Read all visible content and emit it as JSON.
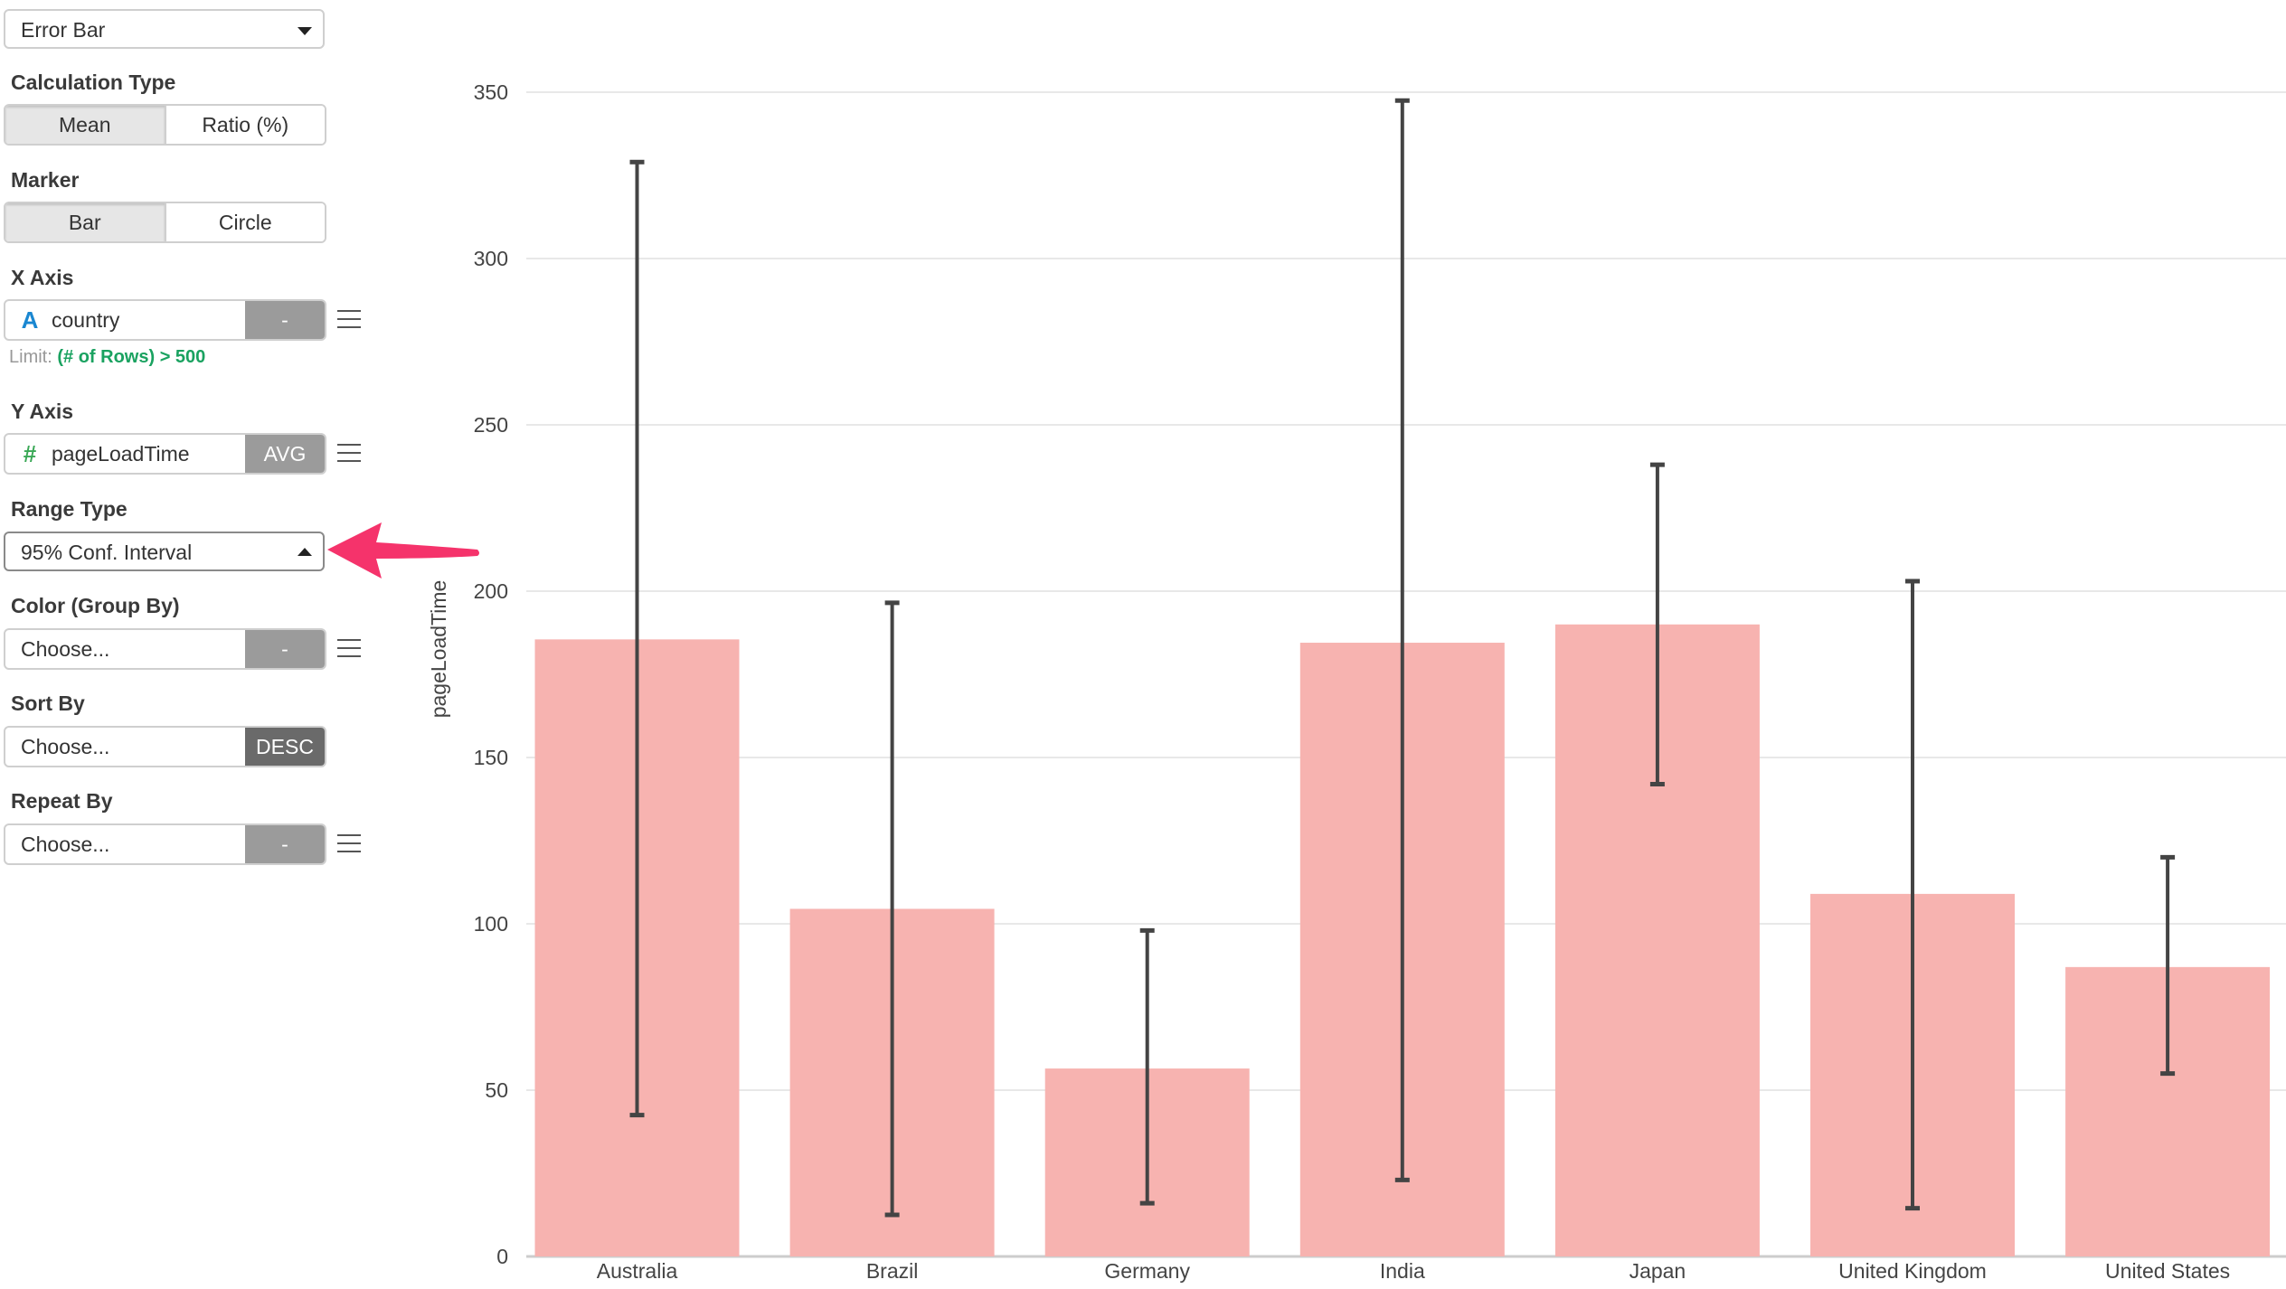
{
  "sidebar": {
    "chart_type": "Error Bar",
    "calculation_type": {
      "label": "Calculation Type",
      "options": [
        "Mean",
        "Ratio (%)"
      ],
      "selected": "Mean"
    },
    "marker": {
      "label": "Marker",
      "options": [
        "Bar",
        "Circle"
      ],
      "selected": "Bar"
    },
    "x_axis": {
      "label": "X Axis",
      "type_icon": "A",
      "field": "country",
      "agg": "-",
      "limit_prefix": "Limit:",
      "limit_value": "(# of Rows) > 500"
    },
    "y_axis": {
      "label": "Y Axis",
      "type_icon": "#",
      "field": "pageLoadTime",
      "agg": "AVG"
    },
    "range_type": {
      "label": "Range Type",
      "value": "95% Conf. Interval"
    },
    "color_group_by": {
      "label": "Color (Group By)",
      "placeholder": "Choose...",
      "agg": "-"
    },
    "sort_by": {
      "label": "Sort By",
      "placeholder": "Choose...",
      "order": "DESC"
    },
    "repeat_by": {
      "label": "Repeat By",
      "placeholder": "Choose...",
      "agg": "-"
    }
  },
  "colors": {
    "bar": "#f7b3b0",
    "error_bar": "#444444",
    "grid": "#e8e8e8",
    "arrow": "#f5336b",
    "x_type_icon": "#1a87d1",
    "y_type_icon": "#3aa856",
    "limit_green": "#1aa260"
  },
  "chart_data": {
    "type": "bar",
    "title": "",
    "xlabel": "",
    "ylabel": "pageLoadTime",
    "ylim": [
      0,
      350
    ],
    "yticks": [
      0,
      50,
      100,
      150,
      200,
      250,
      300,
      350
    ],
    "grid": true,
    "legend": null,
    "categories": [
      "Australia",
      "Brazil",
      "Germany",
      "India",
      "Japan",
      "United Kingdom",
      "United States"
    ],
    "values": [
      185.5,
      104.5,
      56.5,
      184.5,
      190,
      109,
      87
    ],
    "error_low": [
      42.5,
      12.5,
      16,
      23,
      142,
      14.5,
      55
    ],
    "error_high": [
      329,
      196.5,
      98,
      347.5,
      238,
      203,
      120
    ],
    "range_type": "95% Conf. Interval"
  }
}
